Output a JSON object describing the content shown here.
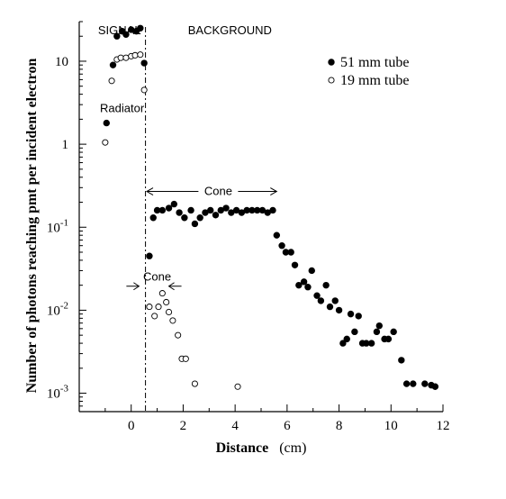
{
  "chart_data": {
    "type": "scatter",
    "xlabel": "Distance",
    "xlabel_unit": "(cm)",
    "ylabel": "Number of photons reaching pmt per incident electron",
    "xlim": [
      -2,
      12
    ],
    "ylim": [
      0.0006,
      30
    ],
    "yscale": "log",
    "x_ticks": [
      0,
      2,
      4,
      6,
      8,
      10,
      12
    ],
    "x_minor_ticks": [
      -1,
      1,
      3,
      5,
      7,
      9,
      11
    ],
    "y_ticks": [
      {
        "value": 10,
        "base": "10",
        "exp": ""
      },
      {
        "value": 1,
        "base": "1",
        "exp": ""
      },
      {
        "value": 0.1,
        "base": "10",
        "exp": "-1"
      },
      {
        "value": 0.01,
        "base": "10",
        "exp": "-2"
      },
      {
        "value": 0.001,
        "base": "10",
        "exp": "-3"
      }
    ],
    "grid": false,
    "legend_position": "top-right",
    "regions": [
      {
        "label": "SIGNAL",
        "x": -0.45
      },
      {
        "label": "BACKGROUND",
        "x": 3.8
      }
    ],
    "divider_x": 0.55,
    "annotations": [
      {
        "text": "Radiator",
        "x": -0.35,
        "y": 2.7
      },
      {
        "text": "Cone",
        "x": 3.35,
        "y": 0.27,
        "arrow_from": 0.6,
        "arrow_to": 5.6
      },
      {
        "text": "Cone",
        "x": 1.0,
        "y": 0.025,
        "inward_left": 0.3,
        "inward_right": 1.45
      }
    ],
    "series": [
      {
        "name": "51 mm tube",
        "marker": "filled",
        "points": [
          [
            -0.95,
            1.8
          ],
          [
            -0.7,
            9
          ],
          [
            -0.55,
            20
          ],
          [
            -0.35,
            23
          ],
          [
            -0.2,
            21
          ],
          [
            0,
            24
          ],
          [
            0.2,
            23
          ],
          [
            0.35,
            25
          ],
          [
            0.5,
            9.5
          ],
          [
            0.7,
            0.045
          ],
          [
            0.85,
            0.13
          ],
          [
            1.0,
            0.16
          ],
          [
            1.2,
            0.16
          ],
          [
            1.45,
            0.17
          ],
          [
            1.65,
            0.19
          ],
          [
            1.85,
            0.15
          ],
          [
            2.05,
            0.13
          ],
          [
            2.3,
            0.16
          ],
          [
            2.45,
            0.11
          ],
          [
            2.65,
            0.13
          ],
          [
            2.85,
            0.15
          ],
          [
            3.05,
            0.16
          ],
          [
            3.25,
            0.14
          ],
          [
            3.45,
            0.16
          ],
          [
            3.65,
            0.17
          ],
          [
            3.85,
            0.15
          ],
          [
            4.05,
            0.16
          ],
          [
            4.25,
            0.15
          ],
          [
            4.45,
            0.16
          ],
          [
            4.65,
            0.16
          ],
          [
            4.85,
            0.16
          ],
          [
            5.05,
            0.16
          ],
          [
            5.25,
            0.15
          ],
          [
            5.45,
            0.16
          ],
          [
            5.6,
            0.08
          ],
          [
            5.8,
            0.06
          ],
          [
            5.95,
            0.05
          ],
          [
            6.15,
            0.05
          ],
          [
            6.3,
            0.035
          ],
          [
            6.45,
            0.02
          ],
          [
            6.65,
            0.022
          ],
          [
            6.8,
            0.019
          ],
          [
            6.95,
            0.03
          ],
          [
            7.15,
            0.015
          ],
          [
            7.3,
            0.013
          ],
          [
            7.5,
            0.02
          ],
          [
            7.65,
            0.011
          ],
          [
            7.85,
            0.013
          ],
          [
            8.0,
            0.01
          ],
          [
            8.15,
            0.004
          ],
          [
            8.3,
            0.0045
          ],
          [
            8.45,
            0.009
          ],
          [
            8.6,
            0.0055
          ],
          [
            8.75,
            0.0085
          ],
          [
            8.9,
            0.004
          ],
          [
            9.05,
            0.004
          ],
          [
            9.25,
            0.004
          ],
          [
            9.45,
            0.0055
          ],
          [
            9.55,
            0.0065
          ],
          [
            9.75,
            0.0045
          ],
          [
            9.9,
            0.0045
          ],
          [
            10.1,
            0.0055
          ],
          [
            10.4,
            0.0025
          ],
          [
            10.6,
            0.0013
          ],
          [
            10.85,
            0.0013
          ],
          [
            11.3,
            0.0013
          ],
          [
            11.55,
            0.00125
          ],
          [
            11.7,
            0.0012
          ]
        ]
      },
      {
        "name": "19 mm tube",
        "marker": "open",
        "points": [
          [
            -1.0,
            1.05
          ],
          [
            -0.75,
            5.8
          ],
          [
            -0.55,
            10.5
          ],
          [
            -0.4,
            11
          ],
          [
            -0.2,
            11
          ],
          [
            0,
            11.5
          ],
          [
            0.15,
            11.8
          ],
          [
            0.35,
            12
          ],
          [
            0.5,
            4.5
          ],
          [
            0.7,
            0.011
          ],
          [
            0.9,
            0.0085
          ],
          [
            1.05,
            0.011
          ],
          [
            1.2,
            0.016
          ],
          [
            1.35,
            0.0125
          ],
          [
            1.45,
            0.0095
          ],
          [
            1.6,
            0.0075
          ],
          [
            1.8,
            0.005
          ],
          [
            1.95,
            0.0026
          ],
          [
            2.1,
            0.0026
          ],
          [
            2.45,
            0.0013
          ],
          [
            4.1,
            0.0012
          ]
        ]
      }
    ]
  }
}
